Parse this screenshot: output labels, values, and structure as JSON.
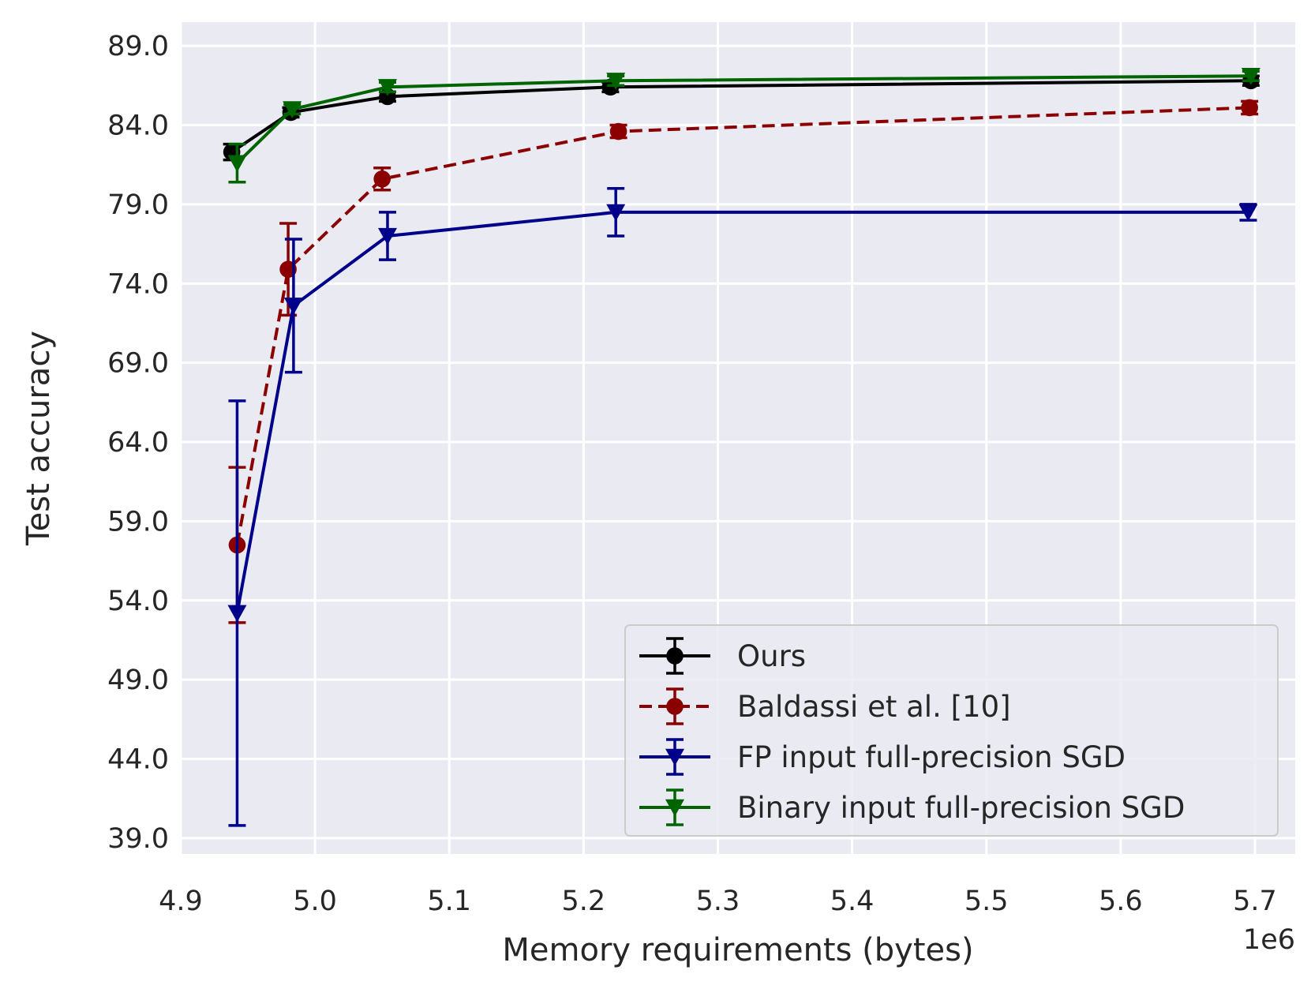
{
  "chart_data": {
    "type": "line",
    "title": "",
    "xlabel": "Memory requirements (bytes)",
    "ylabel": "Test accuracy",
    "x_offset_label": "1e6",
    "xlim": [
      4.9,
      5.73
    ],
    "ylim": [
      38.0,
      90.5
    ],
    "x_ticks": [
      4.9,
      5.0,
      5.1,
      5.2,
      5.3,
      5.4,
      5.5,
      5.6,
      5.7
    ],
    "x_tick_labels": [
      "4.9",
      "5.0",
      "5.1",
      "5.2",
      "5.3",
      "5.4",
      "5.5",
      "5.6",
      "5.7"
    ],
    "y_ticks": [
      39.0,
      44.0,
      49.0,
      54.0,
      59.0,
      64.0,
      69.0,
      74.0,
      79.0,
      84.0,
      89.0
    ],
    "y_tick_labels": [
      "39.0",
      "44.0",
      "49.0",
      "54.0",
      "59.0",
      "64.0",
      "69.0",
      "74.0",
      "79.0",
      "84.0",
      "89.0"
    ],
    "grid": true,
    "background": "#eaeaf2",
    "legend_position": "lower-right",
    "series": [
      {
        "name": "Ours",
        "color": "#000000",
        "linestyle": "solid",
        "marker": "circle",
        "x": [
          4.938,
          4.982,
          5.054,
          5.22,
          5.697
        ],
        "y": [
          82.3,
          84.8,
          85.8,
          86.4,
          86.8
        ],
        "err": [
          0.5,
          0.3,
          0.3,
          0.3,
          0.3
        ]
      },
      {
        "name": "Baldassi et al. [10]",
        "color": "#8b0000",
        "linestyle": "dashed",
        "marker": "circle",
        "x": [
          4.942,
          4.98,
          5.05,
          5.226,
          5.696
        ],
        "y": [
          57.5,
          74.9,
          80.6,
          83.6,
          85.1
        ],
        "err": [
          4.9,
          2.9,
          0.7,
          0.4,
          0.4
        ]
      },
      {
        "name": "FP input full-precision SGD",
        "color": "#00008b",
        "linestyle": "solid",
        "marker": "triangle-down",
        "x": [
          4.942,
          4.984,
          5.054,
          5.224,
          5.695
        ],
        "y": [
          53.2,
          72.6,
          77.0,
          78.5,
          78.5
        ],
        "err": [
          13.4,
          4.2,
          1.5,
          1.5,
          0.5
        ]
      },
      {
        "name": "Binary input full-precision SGD",
        "color": "#006400",
        "linestyle": "solid",
        "marker": "triangle-down",
        "x": [
          4.942,
          4.983,
          5.054,
          5.224,
          5.697
        ],
        "y": [
          81.6,
          85.0,
          86.4,
          86.8,
          87.1
        ],
        "err": [
          1.2,
          0.3,
          0.3,
          0.3,
          0.3
        ]
      }
    ]
  }
}
